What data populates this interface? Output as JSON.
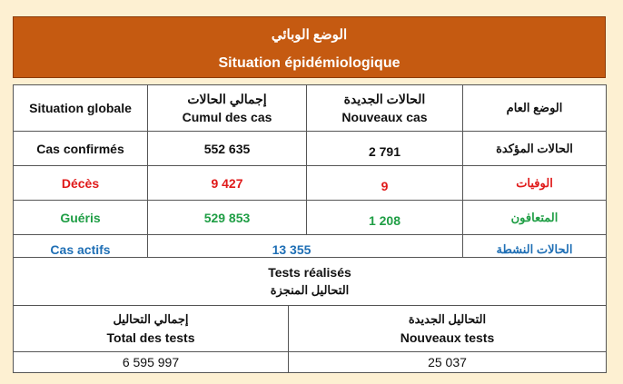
{
  "banner": {
    "title_ar": "الوضع الوبائي",
    "title_fr": "Situation épidémiologique"
  },
  "situation": {
    "headers": {
      "global_fr": "Situation globale",
      "cumul_ar": "إجمالي الحالات",
      "cumul_fr": "Cumul des cas",
      "new_ar": "الحالات الجديدة",
      "new_fr": "Nouveaux cas",
      "global_ar": "الوضع العام"
    },
    "rows": [
      {
        "label_fr": "Cas confirmés",
        "cumul": "552 635",
        "new": "2 791",
        "label_ar": "الحالات المؤكدة",
        "color": "#111111"
      },
      {
        "label_fr": "Décès",
        "cumul": "9 427",
        "new": "9",
        "label_ar": "الوفيات",
        "color": "#e01a1a"
      },
      {
        "label_fr": "Guéris",
        "cumul": "529 853",
        "new": "1 208",
        "label_ar": "المتعافون",
        "color": "#1f9e45"
      }
    ],
    "active": {
      "label_fr": "Cas actifs",
      "value": "13 355",
      "label_ar": "الحالات النشطة",
      "color": "#1f6fb5"
    }
  },
  "tests": {
    "title_fr": "Tests réalisés",
    "title_ar": "التحاليل المنجزة",
    "total_ar": "إجمالي التحاليل",
    "total_fr": "Total des tests",
    "new_ar": "التحاليل الجديدة",
    "new_fr": "Nouveaux tests",
    "total_value": "6 595 997",
    "new_value": "25 037"
  }
}
